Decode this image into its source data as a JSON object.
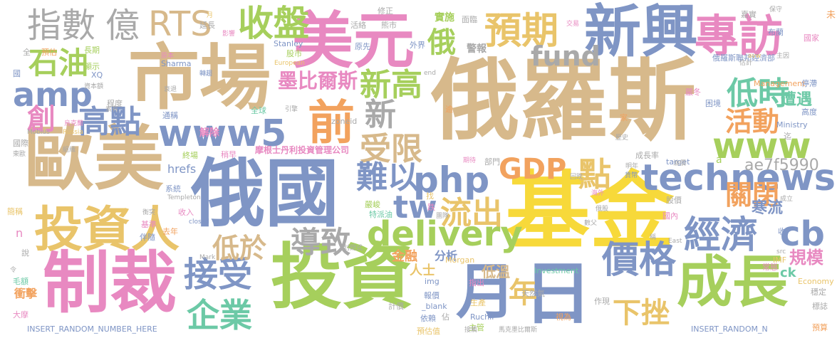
{
  "palette": {
    "gold": "#e9c46a",
    "tan": "#d7b98b",
    "blue": "#7f95c5",
    "green": "#a6cf5c",
    "orange": "#f2a25e",
    "pink": "#e889c1",
    "teal": "#6cc9a6",
    "gray": "#a9a9a9",
    "yellow": "#f7d93a"
  },
  "words": [
    {
      "text": "俄羅斯",
      "color": "tan"
    },
    {
      "text": "基金",
      "color": "yellow"
    },
    {
      "text": "俄國",
      "color": "blue"
    },
    {
      "text": "投資",
      "color": "green"
    },
    {
      "text": "市場",
      "color": "tan"
    },
    {
      "text": "歐美",
      "color": "tan"
    },
    {
      "text": "制裁",
      "color": "pink"
    },
    {
      "text": "美元",
      "color": "pink"
    },
    {
      "text": "新興",
      "color": "blue"
    },
    {
      "text": "成長",
      "color": "green"
    },
    {
      "text": "投資人",
      "color": "gold"
    },
    {
      "text": "月",
      "color": "blue"
    },
    {
      "text": "日",
      "color": "blue"
    },
    {
      "text": "前",
      "color": "orange"
    },
    {
      "text": "www5",
      "color": "blue"
    },
    {
      "text": "專訪",
      "color": "pink"
    },
    {
      "text": "technews",
      "color": "blue"
    },
    {
      "text": "delivery",
      "color": "green"
    },
    {
      "text": "php",
      "color": "blue"
    },
    {
      "text": "預期",
      "color": "gold"
    },
    {
      "text": "收盤",
      "color": "green"
    },
    {
      "text": "www",
      "color": "green"
    },
    {
      "text": "amp",
      "color": "blue"
    },
    {
      "text": "指數",
      "color": "gray"
    },
    {
      "text": "億",
      "color": "gray"
    },
    {
      "text": "RTS",
      "color": "tan"
    },
    {
      "text": "低時",
      "color": "teal"
    },
    {
      "text": "價格",
      "color": "blue"
    },
    {
      "text": "接受",
      "color": "blue"
    },
    {
      "text": "企業",
      "color": "teal"
    },
    {
      "text": "經濟",
      "color": "blue"
    },
    {
      "text": "cb",
      "color": "blue"
    },
    {
      "text": "tw",
      "color": "blue"
    },
    {
      "text": "流出",
      "color": "gold"
    },
    {
      "text": "石油",
      "color": "green"
    },
    {
      "text": "高點",
      "color": "blue"
    },
    {
      "text": "新高",
      "color": "green"
    },
    {
      "text": "新",
      "color": "gray"
    },
    {
      "text": "受限",
      "color": "tan"
    },
    {
      "text": "難以",
      "color": "blue"
    },
    {
      "text": "fund",
      "color": "gray"
    },
    {
      "text": "GDP",
      "color": "orange"
    },
    {
      "text": "點",
      "color": "gold"
    },
    {
      "text": "活動",
      "color": "orange"
    },
    {
      "text": "關閉",
      "color": "orange"
    },
    {
      "text": "導致",
      "color": "gray"
    },
    {
      "text": "低於",
      "color": "tan"
    },
    {
      "text": "年",
      "color": "gold"
    },
    {
      "text": "下挫",
      "color": "gold"
    },
    {
      "text": "創",
      "color": "pink"
    },
    {
      "text": "俄",
      "color": "green"
    },
    {
      "text": "墨比爾斯",
      "color": "pink"
    },
    {
      "text": "ae7f5990",
      "color": "gray"
    },
    {
      "text": "寒流",
      "color": "blue"
    },
    {
      "text": "遭遇",
      "color": "teal"
    },
    {
      "text": "規模",
      "color": "pink"
    },
    {
      "text": "金融",
      "color": "orange"
    },
    {
      "text": "分析",
      "color": "blue"
    },
    {
      "text": "人士",
      "color": "gold"
    },
    {
      "text": "低溫",
      "color": "tan"
    },
    {
      "text": "ck",
      "color": "teal"
    },
    {
      "text": "解除",
      "color": "pink"
    },
    {
      "text": "hrefs",
      "color": "blue"
    },
    {
      "text": "摩根士丹利投資管理公司",
      "color": "pink"
    },
    {
      "text": "實施",
      "color": "green"
    },
    {
      "text": "警報",
      "color": "gray"
    },
    {
      "text": "衝擊",
      "color": "orange"
    },
    {
      "text": "n",
      "color": "pink"
    },
    {
      "text": "INSERT_RANDOM_NUMBER_HERE",
      "color": "blue"
    },
    {
      "text": "INSERT_RANDOM_N",
      "color": "blue"
    },
    {
      "text": "Investment",
      "color": "teal"
    },
    {
      "text": "Management",
      "color": "orange"
    },
    {
      "text": "Morgan",
      "color": "gold"
    },
    {
      "text": "Sharma",
      "color": "blue"
    },
    {
      "text": "Stanley",
      "color": "blue"
    },
    {
      "text": "Ruchir",
      "color": "blue"
    },
    {
      "text": "成長率",
      "color": "gray"
    },
    {
      "text": "股價",
      "color": "gray"
    },
    {
      "text": "國內",
      "color": "pink"
    },
    {
      "text": "俄羅斯聯邦經濟部",
      "color": "blue"
    },
    {
      "text": "嚴冬",
      "color": "pink"
    },
    {
      "text": "困境",
      "color": "blue"
    },
    {
      "text": "停滯",
      "color": "blue"
    },
    {
      "text": "高度",
      "color": "blue"
    },
    {
      "text": "標誌",
      "color": "gray"
    },
    {
      "text": "預算",
      "color": "orange"
    },
    {
      "text": "穩定",
      "color": "gray"
    },
    {
      "text": "常態",
      "color": "pink"
    },
    {
      "text": "主管",
      "color": "green"
    },
    {
      "text": "生產",
      "color": "gold"
    },
    {
      "text": "預估值",
      "color": "gold"
    },
    {
      "text": "依賴",
      "color": "blue"
    },
    {
      "text": "天然氣",
      "color": "gray"
    },
    {
      "text": "指出",
      "color": "pink"
    },
    {
      "text": "報價",
      "color": "blue"
    },
    {
      "text": "計價",
      "color": "gray"
    },
    {
      "text": "作現",
      "color": "gray"
    },
    {
      "text": "視為",
      "color": "orange"
    },
    {
      "text": "特派油",
      "color": "teal"
    },
    {
      "text": "嚴峻",
      "color": "green"
    },
    {
      "text": "跌",
      "color": "pink"
    },
    {
      "text": "找",
      "color": "gold"
    },
    {
      "text": "img",
      "color": "blue"
    },
    {
      "text": "_blank",
      "color": "blue"
    },
    {
      "text": "a",
      "color": "green"
    },
    {
      "text": "target",
      "color": "blue"
    },
    {
      "text": "Ministry",
      "color": "blue"
    },
    {
      "text": "Economy",
      "color": "gold"
    },
    {
      "text": "IMF",
      "color": "gold"
    },
    {
      "text": "East",
      "color": "gray"
    },
    {
      "text": "src",
      "color": "gray"
    },
    {
      "text": "收",
      "color": "blue"
    },
    {
      "text": "zoneid",
      "color": "gray"
    },
    {
      "text": "終場",
      "color": "green"
    },
    {
      "text": "系統",
      "color": "blue"
    },
    {
      "text": "基準",
      "color": "pink"
    },
    {
      "text": "伴隨",
      "color": "blue"
    },
    {
      "text": "收入",
      "color": "pink"
    },
    {
      "text": "去年",
      "color": "orange"
    },
    {
      "text": "closed",
      "color": "blue"
    },
    {
      "text": "Mark",
      "color": "gray"
    },
    {
      "text": "全球",
      "color": "teal"
    },
    {
      "text": "通稱",
      "color": "blue"
    },
    {
      "text": "程度",
      "color": "gray"
    },
    {
      "text": "長期",
      "color": "green"
    },
    {
      "text": "預估",
      "color": "orange"
    },
    {
      "text": "顯示",
      "color": "green"
    },
    {
      "text": "資本額",
      "color": "gray"
    },
    {
      "text": "國際",
      "color": "gray"
    },
    {
      "text": "組織",
      "color": "gray"
    },
    {
      "text": "東歐",
      "color": "gray"
    },
    {
      "text": "毛額",
      "color": "teal"
    },
    {
      "text": "大摩",
      "color": "pink"
    },
    {
      "text": "說",
      "color": "gray"
    },
    {
      "text": "簡稱",
      "color": "gold"
    },
    {
      "text": "令",
      "color": "gray"
    },
    {
      "text": "全",
      "color": "gray"
    },
    {
      "text": "國",
      "color": "blue"
    },
    {
      "text": "股市",
      "color": "green"
    },
    {
      "text": "原先",
      "color": "blue"
    },
    {
      "text": "外界",
      "color": "blue"
    },
    {
      "text": "熊市",
      "color": "gray"
    },
    {
      "text": "修正",
      "color": "gray"
    },
    {
      "text": "面臨",
      "color": "gray"
    },
    {
      "text": "活絡",
      "color": "gray"
    },
    {
      "text": "延長",
      "color": "gray"
    },
    {
      "text": "影響",
      "color": "pink"
    },
    {
      "text": "Mobius",
      "color": "gray"
    },
    {
      "text": "Russia",
      "color": "gold"
    },
    {
      "text": "XQ",
      "color": "blue"
    },
    {
      "text": "European",
      "color": "gold"
    },
    {
      "text": "end",
      "color": "gray"
    },
    {
      "text": "未",
      "color": "orange"
    },
    {
      "text": "布蘭",
      "color": "blue"
    },
    {
      "text": "國家",
      "color": "pink"
    },
    {
      "text": "保守",
      "color": "gray"
    },
    {
      "text": "嘉實",
      "color": "gray"
    },
    {
      "text": "avw",
      "color": "gold"
    },
    {
      "text": "主因",
      "color": "gray"
    },
    {
      "text": "迄",
      "color": "gray"
    },
    {
      "text": "估計",
      "color": "gray"
    },
    {
      "text": "明年",
      "color": "gray"
    },
    {
      "text": "貨幣",
      "color": "blue"
    },
    {
      "text": "俄股",
      "color": "gray"
    },
    {
      "text": "回跌",
      "color": "gray"
    },
    {
      "text": "油價",
      "color": "gray"
    },
    {
      "text": "家",
      "color": "orange"
    },
    {
      "text": "歷史",
      "color": "gray"
    },
    {
      "text": "逾",
      "color": "orange"
    },
    {
      "text": "引擎",
      "color": "gray"
    },
    {
      "text": "衰退",
      "color": "gray"
    },
    {
      "text": "轉趨",
      "color": "blue"
    },
    {
      "text": "稍早",
      "color": "pink"
    },
    {
      "text": "部門",
      "color": "gray"
    },
    {
      "text": "期待",
      "color": "pink"
    },
    {
      "text": "Templeton",
      "color": "gray"
    },
    {
      "text": "衡突",
      "color": "gray"
    },
    {
      "text": "成立",
      "color": "gray"
    },
    {
      "text": "數父",
      "color": "gray"
    },
    {
      "text": "稱",
      "color": "gray"
    },
    {
      "text": "封閉式",
      "color": "gray"
    },
    {
      "text": "團隊",
      "color": "gray"
    },
    {
      "text": "海外",
      "color": "pink"
    },
    {
      "text": "馬克墨比爾斯",
      "color": "gray"
    },
    {
      "text": "接觸",
      "color": "gray"
    },
    {
      "text": "佔",
      "color": "gray"
    },
    {
      "text": "交易",
      "color": "pink"
    },
    {
      "text": "原本",
      "color": "pink"
    },
    {
      "text": "素有",
      "color": "gray"
    },
    {
      "text": "烏克蘭",
      "color": "pink"
    },
    {
      "text": "月",
      "color": "gold"
    }
  ]
}
